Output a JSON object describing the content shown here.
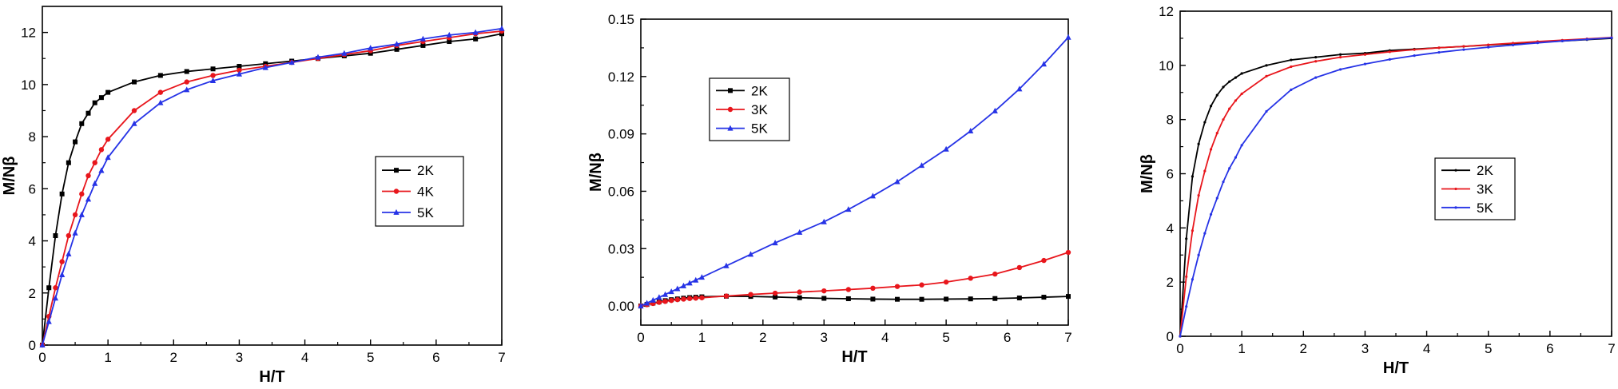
{
  "chart_data": [
    {
      "type": "line",
      "xlabel": "H/T",
      "ylabel": "M/Nβ",
      "xlim": [
        0,
        7
      ],
      "ylim": [
        0,
        13
      ],
      "xticks": [
        "0",
        "1",
        "2",
        "3",
        "4",
        "5",
        "6",
        "7"
      ],
      "yticks": [
        "0",
        "2",
        "4",
        "6",
        "8",
        "10",
        "12"
      ],
      "legend_position": "center-right",
      "series": [
        {
          "name": "2K",
          "color": "#000000",
          "marker": "square",
          "x": [
            0,
            0.1,
            0.2,
            0.3,
            0.4,
            0.5,
            0.6,
            0.7,
            0.8,
            0.9,
            1.0,
            1.4,
            1.8,
            2.2,
            2.6,
            3.0,
            3.4,
            3.8,
            4.2,
            4.6,
            5.0,
            5.4,
            5.8,
            6.2,
            6.6,
            7.0
          ],
          "y": [
            0,
            2.2,
            4.2,
            5.8,
            7.0,
            7.8,
            8.5,
            8.9,
            9.3,
            9.5,
            9.7,
            10.1,
            10.35,
            10.5,
            10.6,
            10.7,
            10.8,
            10.9,
            11.0,
            11.1,
            11.2,
            11.35,
            11.5,
            11.65,
            11.75,
            11.95
          ]
        },
        {
          "name": "4K",
          "color": "#e8161c",
          "marker": "circle",
          "x": [
            0,
            0.1,
            0.2,
            0.3,
            0.4,
            0.5,
            0.6,
            0.7,
            0.8,
            0.9,
            1.0,
            1.4,
            1.8,
            2.2,
            2.6,
            3.0,
            3.4,
            3.8,
            4.2,
            4.6,
            5.0,
            5.4,
            5.8,
            6.2,
            6.6,
            7.0
          ],
          "y": [
            0,
            1.1,
            2.2,
            3.2,
            4.2,
            5.0,
            5.8,
            6.5,
            7.0,
            7.5,
            7.9,
            9.0,
            9.7,
            10.1,
            10.35,
            10.55,
            10.7,
            10.85,
            11.0,
            11.15,
            11.3,
            11.5,
            11.65,
            11.8,
            11.95,
            12.05
          ]
        },
        {
          "name": "5K",
          "color": "#2633e6",
          "marker": "triangle",
          "x": [
            0,
            0.1,
            0.2,
            0.3,
            0.4,
            0.5,
            0.6,
            0.7,
            0.8,
            0.9,
            1.0,
            1.4,
            1.8,
            2.2,
            2.6,
            3.0,
            3.4,
            3.8,
            4.2,
            4.6,
            5.0,
            5.4,
            5.8,
            6.2,
            6.6,
            7.0
          ],
          "y": [
            0,
            0.9,
            1.8,
            2.7,
            3.5,
            4.3,
            5.0,
            5.6,
            6.2,
            6.7,
            7.2,
            8.5,
            9.3,
            9.8,
            10.15,
            10.4,
            10.65,
            10.85,
            11.05,
            11.2,
            11.4,
            11.55,
            11.75,
            11.9,
            12.0,
            12.15
          ]
        }
      ]
    },
    {
      "type": "line",
      "xlabel": "H/T",
      "ylabel": "M/Nβ",
      "xlim": [
        0,
        7
      ],
      "ylim": [
        -0.01,
        0.15
      ],
      "xticks": [
        "0",
        "1",
        "2",
        "3",
        "4",
        "5",
        "6",
        "7"
      ],
      "yticks": [
        "0.00",
        "0.03",
        "0.06",
        "0.09",
        "0.12",
        "0.15"
      ],
      "legend_position": "top-left",
      "series": [
        {
          "name": "2K",
          "color": "#000000",
          "marker": "square",
          "x": [
            0,
            0.1,
            0.2,
            0.3,
            0.4,
            0.5,
            0.6,
            0.7,
            0.8,
            0.9,
            1.0,
            1.4,
            1.8,
            2.2,
            2.6,
            3.0,
            3.4,
            3.8,
            4.2,
            4.6,
            5.0,
            5.4,
            5.8,
            6.2,
            6.6,
            7.0
          ],
          "y": [
            0,
            0.0008,
            0.0015,
            0.0022,
            0.0028,
            0.0033,
            0.0037,
            0.0041,
            0.0044,
            0.0046,
            0.0048,
            0.0051,
            0.005,
            0.0047,
            0.0043,
            0.004,
            0.0038,
            0.0036,
            0.0035,
            0.0035,
            0.0036,
            0.0037,
            0.0039,
            0.0042,
            0.0046,
            0.005
          ]
        },
        {
          "name": "3K",
          "color": "#e8161c",
          "marker": "circle",
          "x": [
            0,
            0.1,
            0.2,
            0.3,
            0.4,
            0.5,
            0.6,
            0.7,
            0.8,
            0.9,
            1.0,
            1.4,
            1.8,
            2.2,
            2.6,
            3.0,
            3.4,
            3.8,
            4.2,
            4.6,
            5.0,
            5.4,
            5.8,
            6.2,
            6.6,
            7.0
          ],
          "y": [
            0,
            0.0007,
            0.0013,
            0.0019,
            0.0024,
            0.0029,
            0.0033,
            0.0036,
            0.0039,
            0.0041,
            0.0043,
            0.0052,
            0.006,
            0.0067,
            0.0073,
            0.0079,
            0.0086,
            0.0093,
            0.0102,
            0.011,
            0.0125,
            0.0145,
            0.0167,
            0.0201,
            0.0238,
            0.028
          ]
        },
        {
          "name": "5K",
          "color": "#2633e6",
          "marker": "triangle",
          "x": [
            0,
            0.1,
            0.2,
            0.3,
            0.4,
            0.5,
            0.6,
            0.7,
            0.8,
            0.9,
            1.0,
            1.4,
            1.8,
            2.2,
            2.6,
            3.0,
            3.4,
            3.8,
            4.2,
            4.6,
            5.0,
            5.4,
            5.8,
            6.2,
            6.6,
            7.0
          ],
          "y": [
            0,
            0.0015,
            0.003,
            0.0045,
            0.006,
            0.0075,
            0.009,
            0.0105,
            0.012,
            0.0135,
            0.015,
            0.021,
            0.027,
            0.033,
            0.0385,
            0.044,
            0.0505,
            0.0575,
            0.065,
            0.0735,
            0.082,
            0.0915,
            0.102,
            0.1135,
            0.1265,
            0.1405
          ]
        }
      ]
    },
    {
      "type": "line",
      "xlabel": "H/T",
      "ylabel": "M/Nβ",
      "xlim": [
        0,
        7
      ],
      "ylim": [
        0,
        12
      ],
      "xticks": [
        "0",
        "1",
        "2",
        "3",
        "4",
        "5",
        "6",
        "7"
      ],
      "yticks": [
        "0",
        "2",
        "4",
        "6",
        "8",
        "10",
        "12"
      ],
      "legend_position": "center-right",
      "series": [
        {
          "name": "2K",
          "color": "#000000",
          "marker": "dot",
          "x": [
            0,
            0.1,
            0.2,
            0.3,
            0.4,
            0.5,
            0.6,
            0.7,
            0.8,
            0.9,
            1.0,
            1.4,
            1.8,
            2.2,
            2.6,
            3.0,
            3.4,
            3.8,
            4.2,
            4.6,
            5.0,
            5.4,
            5.8,
            6.2,
            6.6,
            7.0
          ],
          "y": [
            0,
            3.6,
            5.9,
            7.1,
            7.9,
            8.5,
            8.9,
            9.2,
            9.4,
            9.55,
            9.7,
            10.0,
            10.2,
            10.3,
            10.4,
            10.45,
            10.55,
            10.6,
            10.65,
            10.7,
            10.75,
            10.8,
            10.85,
            10.9,
            10.95,
            11.0
          ]
        },
        {
          "name": "3K",
          "color": "#e8161c",
          "marker": "dot",
          "x": [
            0,
            0.1,
            0.2,
            0.3,
            0.4,
            0.5,
            0.6,
            0.7,
            0.8,
            0.9,
            1.0,
            1.4,
            1.8,
            2.2,
            2.6,
            3.0,
            3.4,
            3.8,
            4.2,
            4.6,
            5.0,
            5.4,
            5.8,
            6.2,
            6.6,
            7.0
          ],
          "y": [
            0,
            2.2,
            3.9,
            5.2,
            6.1,
            6.9,
            7.5,
            8.0,
            8.4,
            8.7,
            8.95,
            9.6,
            9.95,
            10.15,
            10.3,
            10.4,
            10.5,
            10.58,
            10.65,
            10.7,
            10.76,
            10.82,
            10.88,
            10.93,
            10.98,
            11.03
          ]
        },
        {
          "name": "5K",
          "color": "#2633e6",
          "marker": "dot",
          "x": [
            0,
            0.1,
            0.2,
            0.3,
            0.4,
            0.5,
            0.6,
            0.7,
            0.8,
            0.9,
            1.0,
            1.4,
            1.8,
            2.2,
            2.6,
            3.0,
            3.4,
            3.8,
            4.2,
            4.6,
            5.0,
            5.4,
            5.8,
            6.2,
            6.6,
            7.0
          ],
          "y": [
            0,
            1.1,
            2.1,
            3.0,
            3.8,
            4.5,
            5.1,
            5.7,
            6.2,
            6.6,
            7.05,
            8.3,
            9.1,
            9.55,
            9.85,
            10.05,
            10.22,
            10.36,
            10.48,
            10.58,
            10.67,
            10.75,
            10.83,
            10.9,
            10.96,
            11.02
          ]
        }
      ]
    }
  ]
}
